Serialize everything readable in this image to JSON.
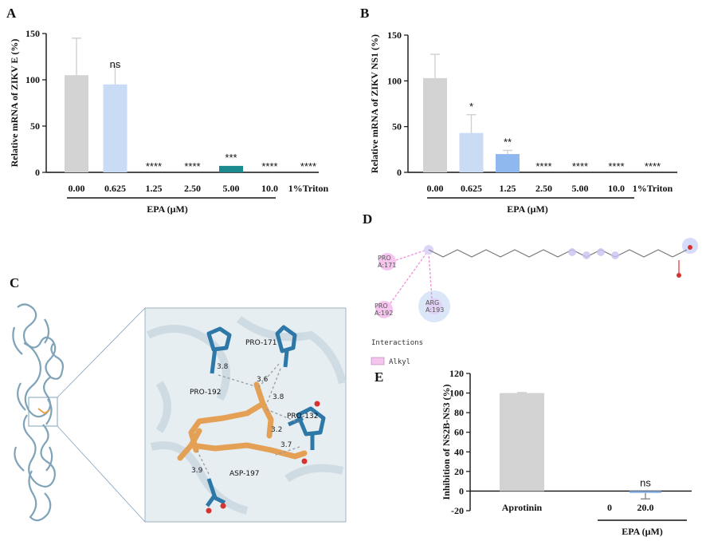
{
  "panels": {
    "A": "A",
    "B": "B",
    "C": "C",
    "D": "D",
    "E": "E"
  },
  "chart_data": [
    {
      "panel": "A",
      "type": "bar",
      "categories": [
        "0.00",
        "0.625",
        "1.25",
        "2.50",
        "5.00",
        "10.0",
        "1%Triton"
      ],
      "values": [
        105,
        95,
        0,
        0,
        7,
        0,
        0
      ],
      "errors": [
        40,
        20,
        0,
        0,
        0,
        0,
        0
      ],
      "significance": [
        "",
        "ns",
        "****",
        "****",
        "***",
        "****",
        "****"
      ],
      "colors": [
        "#d3d3d3",
        "#c9dbf5",
        "#d3d3d3",
        "#d3d3d3",
        "#1a8a8e",
        "#d3d3d3",
        "#d3d3d3"
      ],
      "ylabel": "Relative mRNA of ZIKV E (%)",
      "xlabel": "EPA (μM)",
      "yticks": [
        "0",
        "50",
        "100",
        "150"
      ],
      "ylim": [
        0,
        150
      ]
    },
    {
      "panel": "B",
      "type": "bar",
      "categories": [
        "0.00",
        "0.625",
        "1.25",
        "2.50",
        "5.00",
        "10.0",
        "1%Triton"
      ],
      "values": [
        103,
        43,
        20,
        0,
        0,
        0,
        0
      ],
      "errors": [
        26,
        20,
        4,
        0,
        0,
        0,
        0
      ],
      "significance": [
        "",
        "*",
        "**",
        "****",
        "****",
        "****",
        "****"
      ],
      "colors": [
        "#d3d3d3",
        "#c9dbf5",
        "#8fb8ee",
        "#d3d3d3",
        "#d3d3d3",
        "#d3d3d3",
        "#d3d3d3"
      ],
      "ylabel": "Relative mRNA of  ZIKV NS1 (%)",
      "xlabel": "EPA (μM)",
      "yticks": [
        "0",
        "50",
        "100",
        "150"
      ],
      "ylim": [
        0,
        150
      ]
    },
    {
      "panel": "E",
      "type": "bar",
      "categories": [
        "Aprotinin",
        "0",
        "20.0"
      ],
      "values": [
        100,
        0,
        -2
      ],
      "errors": [
        0.5,
        0,
        6
      ],
      "significance": [
        "",
        "",
        "ns"
      ],
      "colors": [
        "#d3d3d3",
        "#d3d3d3",
        "#8fb8ee"
      ],
      "ylabel": "Inhibition of NS2B-NS3 (%)",
      "xlabel": "EPA (μM)",
      "yticks": [
        "-20",
        "0",
        "20",
        "40",
        "60",
        "80",
        "100",
        "120"
      ],
      "ylim": [
        -20,
        120
      ]
    }
  ],
  "docking": {
    "residues": [
      "PRO-171",
      "PRO-192",
      "PRO-132",
      "ASP-197"
    ],
    "distances": [
      "3.8",
      "3.6",
      "3.8",
      "3.2",
      "3.7",
      "3.9"
    ]
  },
  "interaction_map": {
    "residues": [
      "PRO A:171",
      "PRO A:192",
      "ARG A:193"
    ],
    "legend_title": "Interactions",
    "legend_item": "Alkyl",
    "colors": {
      "alkyl": "#f4b6ec"
    }
  }
}
